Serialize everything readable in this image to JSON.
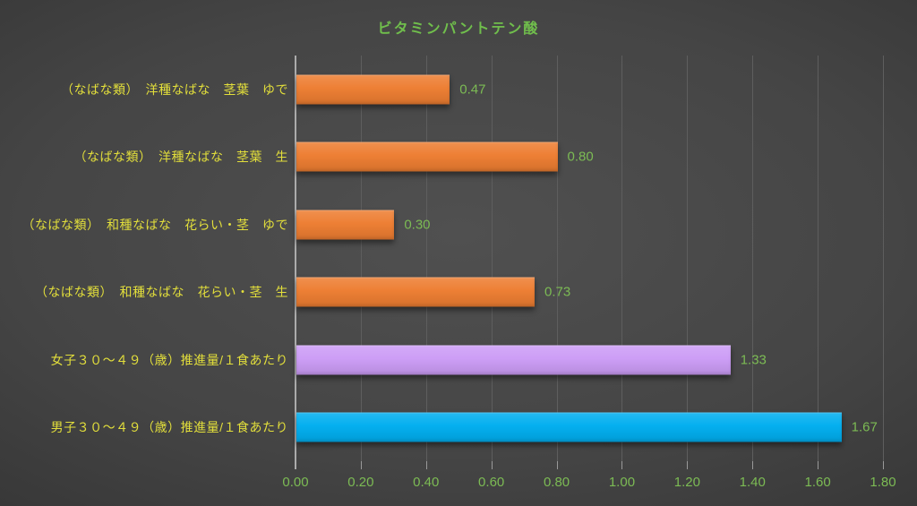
{
  "title": "ビタミンパントテン酸",
  "colors": {
    "title_green": "#70BE4C",
    "category_yellow": "#E3DF3B",
    "value_green": "#7CBB54",
    "tick_green": "#7CBB54",
    "axis_line": "#ABABAB",
    "gridline": "#5E5E5E",
    "tick_mark": "#9A9A9A"
  },
  "chart_data": {
    "type": "bar",
    "orientation": "horizontal",
    "title": "ビタミンパントテン酸",
    "categories": [
      "（なばな類）　洋種なばな　茎葉　ゆで",
      "（なばな類）　洋種なばな　茎葉　生",
      "（なばな類）　和種なばな　花らい・茎　ゆで",
      "（なばな類）　和種なばな　花らい・茎　生",
      "女子３０～４９（歳）推進量/１食あたり",
      "男子３０～４９（歳）推進量/１食あたり"
    ],
    "values": [
      0.47,
      0.8,
      0.3,
      0.73,
      1.33,
      1.67
    ],
    "value_labels": [
      "0.47",
      "0.80",
      "0.30",
      "0.73",
      "1.33",
      "1.67"
    ],
    "bar_colors": [
      "#ED7D31",
      "#ED7D31",
      "#ED7D31",
      "#ED7D31",
      "#CC9CF6",
      "#00AEEF"
    ],
    "xlim": [
      0,
      1.8
    ],
    "x_ticks": [
      0.0,
      0.2,
      0.4,
      0.6,
      0.8,
      1.0,
      1.2,
      1.4,
      1.6,
      1.8
    ],
    "x_tick_labels": [
      "0.00",
      "0.20",
      "0.40",
      "0.60",
      "0.80",
      "1.00",
      "1.20",
      "1.40",
      "1.60",
      "1.80"
    ],
    "grid": true,
    "legend": false,
    "ylabel": "",
    "xlabel": ""
  }
}
